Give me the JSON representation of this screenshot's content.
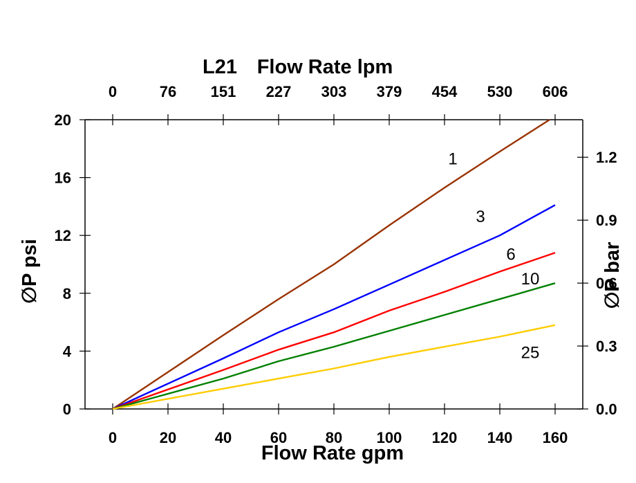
{
  "chart_data": {
    "type": "line",
    "title": "L21",
    "x_bottom": {
      "label": "Flow Rate gpm",
      "ticks": [
        0,
        20,
        40,
        60,
        80,
        100,
        120,
        140,
        160
      ],
      "range": [
        -10,
        170
      ]
    },
    "x_top": {
      "label": "Flow Rate lpm",
      "ticks": [
        0,
        76,
        151,
        227,
        303,
        379,
        454,
        530,
        606
      ]
    },
    "y_left": {
      "label": "∅P psi",
      "ticks": [
        0,
        4,
        8,
        12,
        16,
        20
      ],
      "range": [
        0,
        20
      ]
    },
    "y_right": {
      "label": "∅P bar",
      "ticks": [
        "0.0",
        "0.3",
        "0.6",
        "0.9",
        "1.2"
      ],
      "tick_values": [
        0,
        0.3,
        0.6,
        0.9,
        1.2
      ],
      "psi_per_unit": 14.5038
    },
    "series": [
      {
        "name": "1",
        "color": "#993300",
        "x": [
          0,
          40,
          60,
          80,
          100,
          120,
          140,
          158
        ],
        "y": [
          0,
          5.1,
          7.6,
          10.0,
          12.7,
          15.3,
          17.8,
          20.0
        ],
        "label_at": [
          123,
          17.3
        ]
      },
      {
        "name": "3",
        "color": "#0000ff",
        "x": [
          0,
          40,
          60,
          80,
          100,
          120,
          140,
          160
        ],
        "y": [
          0,
          3.5,
          5.3,
          6.9,
          8.6,
          10.3,
          12.0,
          14.1
        ],
        "label_at": [
          133,
          13.3
        ]
      },
      {
        "name": "6",
        "color": "#ff0000",
        "x": [
          0,
          40,
          60,
          80,
          100,
          120,
          140,
          160
        ],
        "y": [
          0,
          2.7,
          4.1,
          5.3,
          6.8,
          8.1,
          9.5,
          10.8
        ],
        "label_at": [
          144,
          10.7
        ]
      },
      {
        "name": "10",
        "color": "#008000",
        "x": [
          0,
          40,
          60,
          80,
          100,
          120,
          140,
          160
        ],
        "y": [
          0,
          2.1,
          3.3,
          4.3,
          5.4,
          6.5,
          7.6,
          8.7
        ],
        "label_at": [
          151,
          9.0
        ]
      },
      {
        "name": "25",
        "color": "#ffcc00",
        "x": [
          0,
          40,
          60,
          80,
          100,
          120,
          140,
          160
        ],
        "y": [
          0,
          1.4,
          2.1,
          2.8,
          3.6,
          4.3,
          5.0,
          5.8
        ],
        "label_at": [
          151,
          3.9
        ]
      }
    ]
  }
}
